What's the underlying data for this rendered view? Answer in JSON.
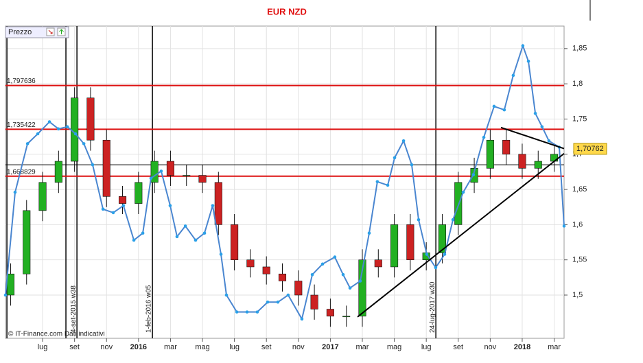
{
  "chart_data": {
    "type": "candlestick",
    "title": "EUR NZD",
    "legend_label": "Prezzo",
    "footer": "© IT-Finance.com   Dati indicativi",
    "xlim": [
      -2.32,
      32.62
    ],
    "ylim": [
      1.4386,
      1.882
    ],
    "xticks": [
      {
        "value": 0,
        "label": "lug"
      },
      {
        "value": 2,
        "label": "set"
      },
      {
        "value": 4,
        "label": "nov"
      },
      {
        "value": 6,
        "label": "2016"
      },
      {
        "value": 8,
        "label": "mar"
      },
      {
        "value": 10,
        "label": "mag"
      },
      {
        "value": 12,
        "label": "lug"
      },
      {
        "value": 14,
        "label": "set"
      },
      {
        "value": 16,
        "label": "nov"
      },
      {
        "value": 18,
        "label": "2017"
      },
      {
        "value": 20,
        "label": "mar"
      },
      {
        "value": 22,
        "label": "mag"
      },
      {
        "value": 24,
        "label": "lug"
      },
      {
        "value": 26,
        "label": "set"
      },
      {
        "value": 28,
        "label": "nov"
      },
      {
        "value": 30,
        "label": "2018"
      },
      {
        "value": 32,
        "label": "mar"
      }
    ],
    "yticks": [
      {
        "value": 1.5,
        "label": "1,5"
      },
      {
        "value": 1.55,
        "label": "1,55"
      },
      {
        "value": 1.6,
        "label": "1,6"
      },
      {
        "value": 1.65,
        "label": "1,65"
      },
      {
        "value": 1.7,
        "label": "1,7"
      },
      {
        "value": 1.75,
        "label": "1,75"
      },
      {
        "value": 1.8,
        "label": "1,8"
      },
      {
        "value": 1.85,
        "label": "1,85"
      }
    ],
    "grid": true,
    "candles": {
      "up_color": "#22b022",
      "down_color": "#cc2222",
      "x": [
        -2,
        -1,
        0,
        1,
        2,
        3,
        4,
        5,
        6,
        7,
        8,
        9,
        10,
        11,
        12,
        13,
        14,
        15,
        16,
        17,
        18,
        19,
        20,
        21,
        22,
        23,
        24,
        25,
        26,
        27,
        28,
        29,
        30,
        31,
        32
      ],
      "open": [
        1.5,
        1.53,
        1.62,
        1.66,
        1.69,
        1.78,
        1.72,
        1.64,
        1.63,
        1.66,
        1.69,
        1.67,
        1.67,
        1.66,
        1.6,
        1.55,
        1.54,
        1.53,
        1.52,
        1.5,
        1.48,
        1.47,
        1.47,
        1.55,
        1.54,
        1.6,
        1.55,
        1.56,
        1.6,
        1.66,
        1.68,
        1.72,
        1.7,
        1.68,
        1.69
      ],
      "high": [
        1.545,
        1.635,
        1.675,
        1.705,
        1.795,
        1.795,
        1.735,
        1.655,
        1.675,
        1.705,
        1.705,
        1.685,
        1.685,
        1.675,
        1.615,
        1.565,
        1.555,
        1.545,
        1.535,
        1.515,
        1.495,
        1.485,
        1.565,
        1.565,
        1.615,
        1.615,
        1.575,
        1.615,
        1.675,
        1.695,
        1.735,
        1.735,
        1.715,
        1.705,
        1.715
      ],
      "low": [
        1.485,
        1.515,
        1.605,
        1.645,
        1.675,
        1.705,
        1.625,
        1.615,
        1.615,
        1.645,
        1.655,
        1.655,
        1.645,
        1.585,
        1.535,
        1.525,
        1.515,
        1.505,
        1.485,
        1.465,
        1.455,
        1.455,
        1.455,
        1.525,
        1.525,
        1.535,
        1.535,
        1.545,
        1.585,
        1.645,
        1.665,
        1.685,
        1.665,
        1.665,
        1.675
      ],
      "close": [
        1.53,
        1.62,
        1.66,
        1.69,
        1.78,
        1.72,
        1.64,
        1.63,
        1.66,
        1.69,
        1.67,
        1.67,
        1.66,
        1.6,
        1.55,
        1.54,
        1.53,
        1.52,
        1.5,
        1.48,
        1.47,
        1.47,
        1.55,
        1.54,
        1.6,
        1.55,
        1.56,
        1.6,
        1.66,
        1.68,
        1.72,
        1.7,
        1.68,
        1.69,
        1.7
      ]
    },
    "series": [
      {
        "color": "#4a86d0",
        "x": [
          -2.32,
          -1.72,
          -0.94,
          -0.3,
          0.43,
          0.99,
          1.55,
          2.06,
          2.58,
          3.13,
          3.78,
          4.42,
          5.06,
          5.71,
          6.27,
          6.78,
          7.42,
          7.98,
          8.41,
          8.93,
          9.57,
          10.13,
          10.64,
          11.16,
          11.5,
          12.15,
          12.79,
          13.43,
          14.08,
          14.72,
          15.36,
          16.22,
          16.87,
          17.51,
          18.28,
          18.8,
          19.23,
          19.87,
          20.43,
          20.94,
          21.59,
          22.02,
          22.58,
          23.09,
          23.52,
          24.03,
          24.59,
          25.15,
          25.67,
          26.31,
          26.95,
          27.6,
          28.24,
          28.88,
          29.44,
          30.04,
          30.39,
          30.82,
          31.24,
          31.67,
          32.32,
          32.62
        ],
        "values": [
          1.5,
          1.646,
          1.715,
          1.729,
          1.746,
          1.736,
          1.739,
          1.729,
          1.715,
          1.685,
          1.622,
          1.617,
          1.627,
          1.578,
          1.588,
          1.666,
          1.676,
          1.627,
          1.583,
          1.598,
          1.578,
          1.588,
          1.627,
          1.558,
          1.5,
          1.476,
          1.476,
          1.476,
          1.49,
          1.49,
          1.5,
          1.466,
          1.529,
          1.544,
          1.554,
          1.529,
          1.51,
          1.52,
          1.588,
          1.661,
          1.656,
          1.695,
          1.719,
          1.685,
          1.607,
          1.558,
          1.539,
          1.558,
          1.607,
          1.646,
          1.671,
          1.724,
          1.768,
          1.763,
          1.812,
          1.854,
          1.832,
          1.758,
          1.739,
          1.719,
          1.71,
          1.598
        ]
      }
    ],
    "levels": [
      {
        "value": 1.797636,
        "label": "1,797636"
      },
      {
        "value": 1.735422,
        "label": "1,735422"
      },
      {
        "value": 1.668829,
        "label": "1,668829"
      }
    ],
    "level_color": "#dd1111",
    "last_price": {
      "value": 1.70762,
      "label": "1,70762"
    },
    "crosshair": 1.685,
    "vlines": [
      {
        "x": -2.23
      },
      {
        "x": 1.46
      },
      {
        "x": 2.15,
        "label": "4-set-2015 w38"
      },
      {
        "x": 6.87,
        "label": "1-feb-2016 w05"
      },
      {
        "x": 24.6,
        "label": "24-lug-2017 w30"
      }
    ],
    "trendlines": [
      {
        "x": [
          19.7,
          32.62
        ],
        "y": [
          1.469,
          1.701
        ]
      },
      {
        "x": [
          28.67,
          32.62
        ],
        "y": [
          1.738,
          1.708
        ]
      }
    ]
  }
}
